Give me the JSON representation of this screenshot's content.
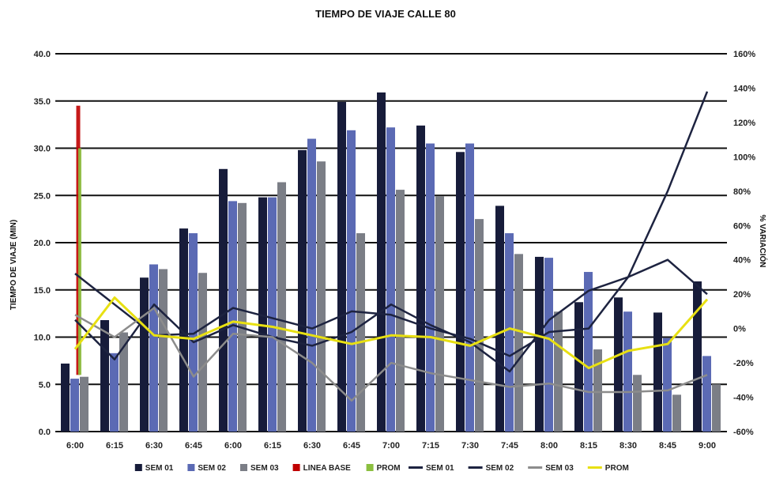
{
  "chart_data": {
    "type": "bar",
    "title": "TIEMPO DE VIAJE CALLE 80",
    "ylabel": "TIEMPO DE VIAJE (MIN)",
    "y2label": "% VARIACIÓN",
    "ylim": [
      0,
      40
    ],
    "y2lim": [
      -60,
      160
    ],
    "grid": true,
    "legend_position": "bottom",
    "y_ticks": [
      "0.0",
      "5.0",
      "10.0",
      "15.0",
      "20.0",
      "25.0",
      "30.0",
      "35.0",
      "40.0"
    ],
    "y2_ticks": [
      "-60%",
      "-40%",
      "-20%",
      "0%",
      "20%",
      "40%",
      "60%",
      "80%",
      "100%",
      "120%",
      "140%",
      "160%"
    ],
    "categories": [
      "6:00",
      "6:15",
      "6:30",
      "6:45",
      "6:00",
      "6:15",
      "6:30",
      "6:45",
      "7:00",
      "7:15",
      "7:30",
      "7:45",
      "8:00",
      "8:15",
      "8:30",
      "8:45",
      "9:00"
    ],
    "bar_series": [
      {
        "name": "SEM 01",
        "color": "#171c3a",
        "values": [
          7.2,
          11.8,
          16.3,
          21.5,
          27.8,
          24.8,
          29.8,
          34.9,
          35.9,
          32.4,
          29.6,
          23.9,
          18.5,
          13.7,
          14.2,
          12.6,
          15.9
        ]
      },
      {
        "name": "SEM 02",
        "color": "#5b6ab4",
        "values": [
          5.6,
          8.3,
          17.7,
          21.0,
          24.4,
          24.8,
          31.0,
          31.9,
          32.2,
          30.5,
          30.5,
          21.0,
          18.4,
          16.9,
          12.7,
          9.9,
          8.0
        ]
      },
      {
        "name": "SEM 03",
        "color": "#7b7e86",
        "values": [
          5.8,
          10.5,
          17.2,
          16.8,
          24.2,
          26.4,
          28.6,
          21.0,
          25.6,
          24.9,
          22.5,
          18.8,
          12.7,
          8.7,
          6.0,
          3.9,
          5.0
        ]
      }
    ],
    "base_line": {
      "name": "LINEA BASE",
      "category": "6:00",
      "range": [
        6.0,
        34.5
      ],
      "color": "#c00000"
    },
    "avg_bar": {
      "name": "PROM",
      "category": "6:00",
      "range": [
        6.0,
        30.0
      ],
      "color": "#8bbf3f"
    },
    "line_series": [
      {
        "name": "SEM 01",
        "color": "#1d2340",
        "values": [
          32,
          14,
          -4,
          -3,
          12,
          6,
          0,
          10,
          8,
          0,
          -6,
          -16,
          -2,
          0,
          30,
          40,
          20
        ]
      },
      {
        "name": "SEM 02",
        "color": "#1d2340",
        "values": [
          5,
          -18,
          14,
          -8,
          2,
          -5,
          -10,
          -2,
          14,
          2,
          -8,
          -25,
          5,
          22,
          30,
          80,
          138
        ]
      },
      {
        "name": "SEM 03",
        "color": "#8c8c8c",
        "values": [
          8,
          -5,
          12,
          -28,
          -3,
          -5,
          -20,
          -42,
          -20,
          -26,
          -30,
          -34,
          -32,
          -37,
          -37,
          -36,
          -27
        ]
      },
      {
        "name": "PROM",
        "color": "#e8e012",
        "values": [
          -12,
          18,
          -4,
          -6,
          4,
          1,
          -4,
          -9,
          -4,
          -5,
          -10,
          0,
          -6,
          -23,
          -13,
          -9,
          17
        ]
      }
    ]
  },
  "legend": [
    {
      "label": "SEM 01",
      "kind": "box",
      "color": "#171c3a"
    },
    {
      "label": "SEM 02",
      "kind": "box",
      "color": "#5b6ab4"
    },
    {
      "label": "SEM 03",
      "kind": "box",
      "color": "#7b7e86"
    },
    {
      "label": "LINEA BASE",
      "kind": "box",
      "color": "#c00000"
    },
    {
      "label": "PROM",
      "kind": "box",
      "color": "#8bbf3f"
    },
    {
      "label": "SEM 01",
      "kind": "line",
      "color": "#1d2340"
    },
    {
      "label": "SEM 02",
      "kind": "line",
      "color": "#1d2340"
    },
    {
      "label": "SEM 03",
      "kind": "line",
      "color": "#8c8c8c"
    },
    {
      "label": "PROM",
      "kind": "line",
      "color": "#e8e012"
    }
  ]
}
